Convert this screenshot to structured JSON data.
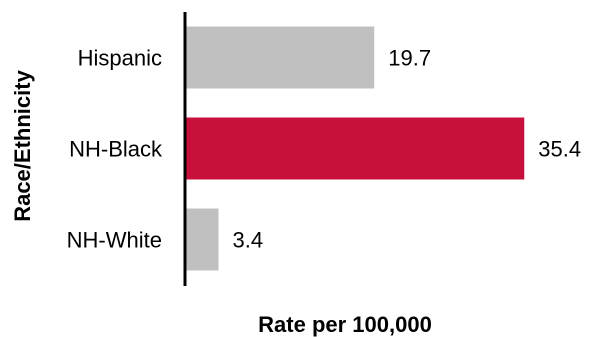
{
  "chart_data": {
    "type": "bar",
    "orientation": "horizontal",
    "categories": [
      "Hispanic",
      "NH-Black",
      "NH-White"
    ],
    "values": [
      19.7,
      35.4,
      3.4
    ],
    "value_labels": [
      "19.7",
      "35.4",
      "3.4"
    ],
    "colors": [
      "#c0c0c0",
      "#c8103c",
      "#c0c0c0"
    ],
    "title": "",
    "xlabel": "Rate per 100,000",
    "ylabel": "Race/Ethnicity",
    "xlim": [
      0,
      36
    ],
    "grid": false,
    "legend": "none"
  }
}
